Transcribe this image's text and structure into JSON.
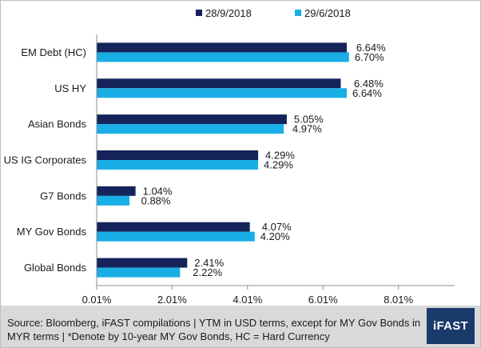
{
  "chart_data": {
    "type": "bar",
    "orientation": "horizontal",
    "categories": [
      "EM Debt (HC)",
      "US HY",
      "Asian Bonds",
      "US IG Corporates",
      "G7 Bonds",
      "MY Gov Bonds",
      "Global Bonds"
    ],
    "series": [
      {
        "name": "28/9/2018",
        "color": "#14235a",
        "values": [
          6.64,
          6.48,
          5.05,
          4.29,
          1.04,
          4.07,
          2.41
        ],
        "labels": [
          "6.64%",
          "6.48%",
          "5.05%",
          "4.29%",
          "1.04%",
          "4.07%",
          "2.41%"
        ]
      },
      {
        "name": "29/6/2018",
        "color": "#19aee6",
        "values": [
          6.7,
          6.64,
          4.97,
          4.29,
          0.88,
          4.2,
          2.22
        ],
        "labels": [
          "6.70%",
          "6.64%",
          "4.97%",
          "4.29%",
          "0.88%",
          "4.20%",
          "2.22%"
        ]
      }
    ],
    "xticks": [
      0.01,
      2.01,
      4.01,
      6.01,
      8.01
    ],
    "xtick_labels": [
      "0.01%",
      "2.01%",
      "4.01%",
      "6.01%",
      "8.01%"
    ],
    "xlim": [
      0.01,
      9.5
    ],
    "legend_position": "top",
    "grid": false
  },
  "footer": {
    "source": "Source: Bloomberg, iFAST compilations | YTM in USD terms, except for MY Gov Bonds in MYR terms |  *Denote by 10-year MY Gov Bonds, HC = Hard Currency",
    "logo": "iFAST"
  }
}
